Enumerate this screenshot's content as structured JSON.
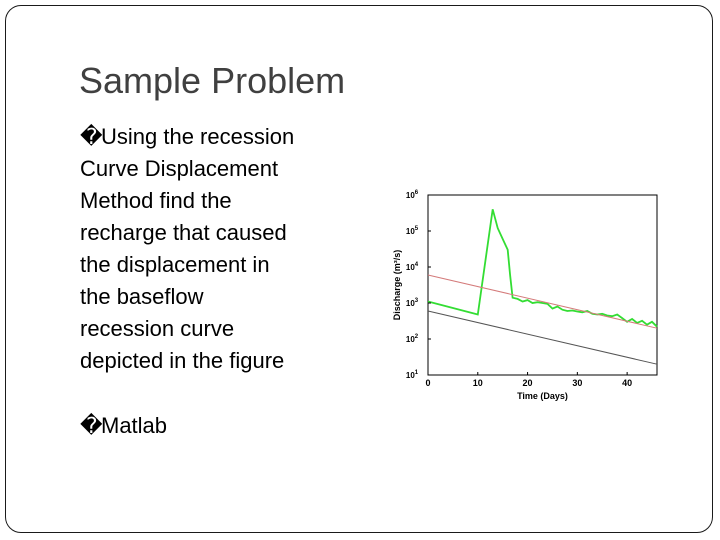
{
  "slide": {
    "title": "Sample Problem",
    "bullets": [
      {
        "mark": "�",
        "lines": [
          "Using the recession",
          "Curve Displacement",
          "Method  find the",
          "recharge that caused",
          "the displacement in",
          "the baseflow",
          "recession curve",
          "depicted in the figure"
        ]
      },
      {
        "mark": "�",
        "lines": [
          "Matlab"
        ]
      }
    ]
  },
  "chart_data": {
    "type": "line",
    "xlabel": "Time (Days)",
    "ylabel": "Discharge (m³/s)",
    "xlim": [
      0,
      46
    ],
    "ylim_log10": [
      1,
      6
    ],
    "y_scale": "log",
    "x_ticks": [
      "0",
      "10",
      "20",
      "30",
      "40"
    ],
    "y_ticks": [
      {
        "base": "10",
        "exp": "6"
      },
      {
        "base": "10",
        "exp": "5"
      },
      {
        "base": "10",
        "exp": "4"
      },
      {
        "base": "10",
        "exp": "3"
      },
      {
        "base": "10",
        "exp": "2"
      },
      {
        "base": "10",
        "exp": "1"
      }
    ],
    "colors": {
      "hydrograph": "#33dd33",
      "displaced_recession": "#d47a7a",
      "baseflow_recession": "#555555"
    },
    "series": [
      {
        "key": "hydrograph",
        "x": [
          0,
          10,
          13,
          14,
          15,
          16,
          16.5,
          17,
          18,
          19,
          20,
          21,
          22,
          23,
          24,
          25,
          26,
          27,
          28,
          29,
          30,
          31,
          32,
          33,
          34,
          35,
          36,
          37,
          38,
          39,
          40,
          41,
          42,
          43,
          44,
          45,
          46
        ],
        "y": [
          1100,
          480,
          400000,
          120000,
          60000,
          30000,
          6000,
          1400,
          1300,
          1100,
          1200,
          1000,
          1050,
          1000,
          950,
          700,
          800,
          650,
          600,
          620,
          580,
          550,
          600,
          500,
          480,
          500,
          450,
          430,
          480,
          380,
          300,
          360,
          280,
          320,
          250,
          300,
          220
        ]
      },
      {
        "key": "displaced_recession",
        "x": [
          0,
          46
        ],
        "y": [
          6000,
          200
        ]
      },
      {
        "key": "baseflow_recession",
        "x": [
          0,
          46
        ],
        "y": [
          600,
          20
        ]
      }
    ]
  }
}
